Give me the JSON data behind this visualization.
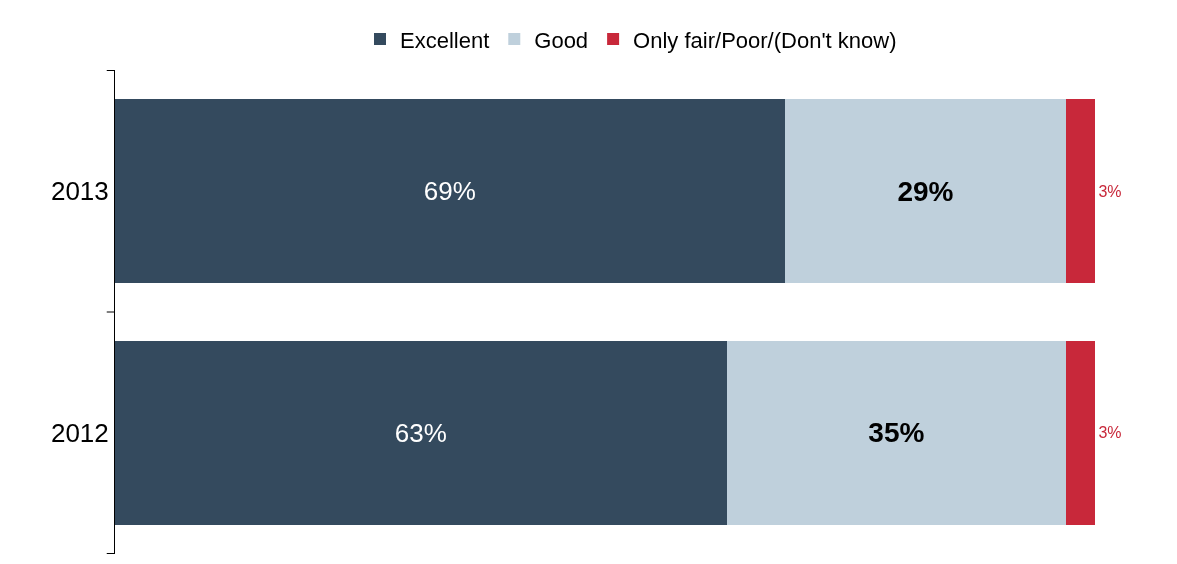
{
  "chart_data": {
    "type": "bar",
    "orientation": "horizontal",
    "stacked": true,
    "categories": [
      "2013",
      "2012"
    ],
    "series": [
      {
        "name": "Excellent",
        "color": "#344a5e",
        "values": [
          69,
          63
        ],
        "value_labels": [
          "69%",
          "63%"
        ]
      },
      {
        "name": "Good",
        "color": "#bfd0dc",
        "values": [
          29,
          35
        ],
        "value_labels": [
          "29%",
          "35%"
        ]
      },
      {
        "name": "Only fair/Poor/(Don't know)",
        "color": "#c8283a",
        "values": [
          3,
          3
        ],
        "value_labels": [
          "3%",
          "3%"
        ]
      }
    ],
    "legend": "top",
    "tick_labels": "y"
  }
}
